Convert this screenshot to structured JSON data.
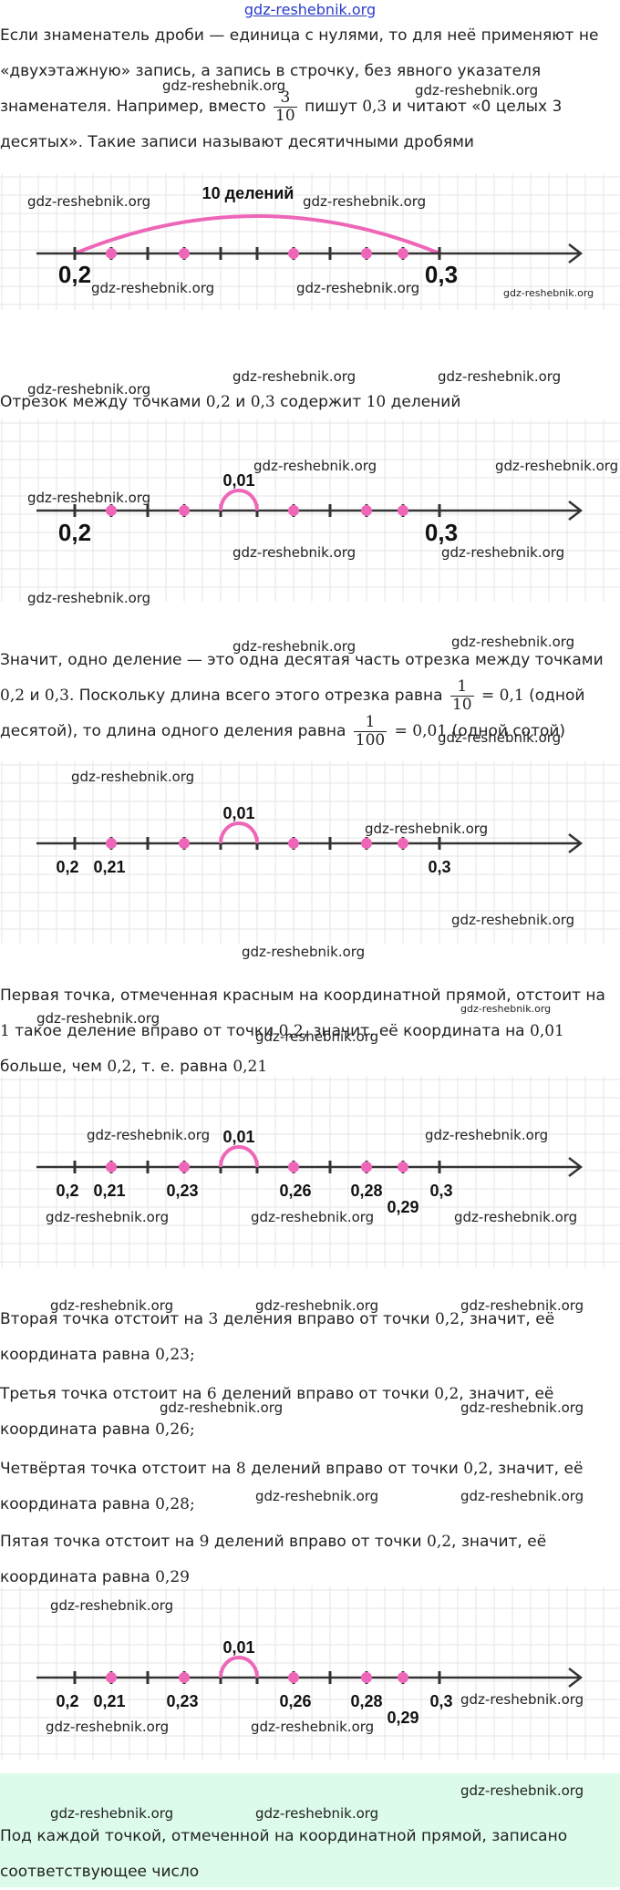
{
  "header": {
    "site": "gdz-reshebnik.org"
  },
  "watermark": "gdz-reshebnik.org",
  "paragraphs": {
    "p1a": "Если знаменатель дроби — единица с нулями, то для неё применяют не «двухэтажную» запись, а запись в строчку, без явного указателя знаменателя. Например, вместо",
    "p1_frac_num": "3",
    "p1_frac_den": "10",
    "p1b": "пишут",
    "p1_val": "0,3",
    "p1c": "и читают «0 целых 3 десятых». Такие записи называют десятичными дробями",
    "p2a": "Отрезок между точками",
    "p2_v1": "0,2",
    "p2b": "и",
    "p2_v2": "0,3",
    "p2c": "содержит",
    "p2_v3": "10",
    "p2d": "делений",
    "p3a": "Значит, одно деление — это одна десятая часть отрезка между точками",
    "p3_v1": "0,2",
    "p3b": "и",
    "p3_v2": "0,3",
    "p3c": ". Поскольку длина всего этого отрезка равна",
    "p3_f1_num": "1",
    "p3_f1_den": "10",
    "p3_f1_res": "= 0,1",
    "p3d": "(одной десятой), то длина одного деления равна",
    "p3_f2_num": "1",
    "p3_f2_den": "100",
    "p3_f2_res": "= 0,01",
    "p3e": "(одной сотой)",
    "p4a": "Первая точка, отмеченная красным на координатной прямой, отстоит на",
    "p4_v1": "1",
    "p4b": "такое деление вправо от точки",
    "p4_v2": "0,2",
    "p4c": ", значит, её координата на",
    "p4_v3": "0,01",
    "p4d": "больше, чем",
    "p4_v4": "0,2",
    "p4e": ", т. е. равна",
    "p4_v5": "0,21",
    "p5a": "Вторая точка отстоит на",
    "p5_v1": "3",
    "p5b": "деления вправо от точки",
    "p5_v2": "0,2",
    "p5c": ", значит, её координата равна",
    "p5_v3": "0,23;",
    "p6a": "Третья точка отстоит на",
    "p6_v1": "6",
    "p6b": "делений вправо от точки",
    "p6_v2": "0,2",
    "p6c": ", значит, её координата равна",
    "p6_v3": "0,26;",
    "p7a": "Четвёртая точка отстоит на",
    "p7_v1": "8",
    "p7b": "делений вправо от точки",
    "p7_v2": "0,2",
    "p7c": ", значит, её координата равна",
    "p7_v3": "0,28;",
    "p8a": "Пятая точка отстоит на",
    "p8_v1": "9",
    "p8b": "делений вправо от точки",
    "p8_v2": "0,2",
    "p8c": ", значит, её координата равна",
    "p8_v3": "0,29",
    "p9": "Под каждой точкой, отмеченной на координатной прямой, записано соответствующее число"
  },
  "figures": {
    "f1": {
      "arc_label": "10 делений",
      "left_label": "0,2",
      "right_label": "0,3"
    },
    "f2": {
      "arc_label": "0,01",
      "left_label": "0,2",
      "right_label": "0,3"
    },
    "f3": {
      "arc_label": "0,01",
      "labels": [
        "0,2",
        "0,21",
        "0,3"
      ]
    },
    "f4": {
      "arc_label": "0,01",
      "labels": [
        "0,2",
        "0,21",
        "0,23",
        "0,26",
        "0,28",
        "0,29",
        "0,3"
      ]
    },
    "f5": {
      "arc_label": "0,01",
      "labels": [
        "0,2",
        "0,21",
        "0,23",
        "0,26",
        "0,28",
        "0,29",
        "0,3"
      ]
    }
  },
  "colors": {
    "accent": "#ee66b8",
    "axis": "#333333",
    "grid": "#e6e6e6",
    "link": "#2b3cc8",
    "note_bg": "#dcfbeb"
  }
}
